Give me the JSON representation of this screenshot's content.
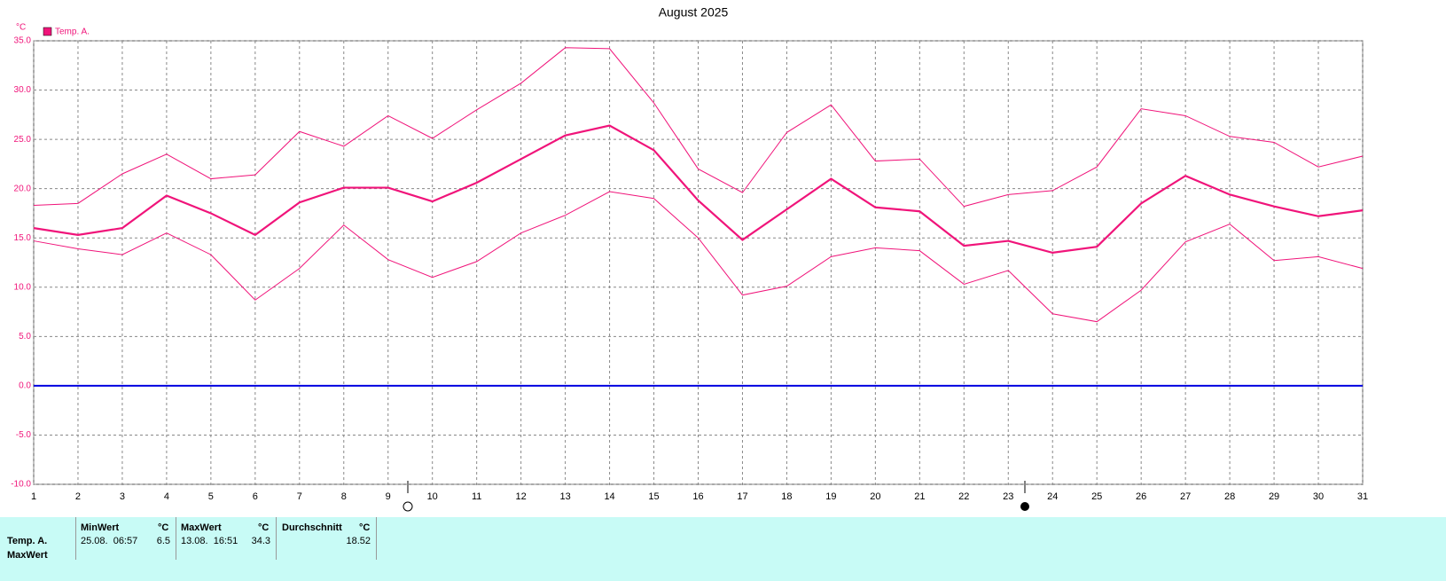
{
  "chart_data": {
    "type": "line",
    "title": "August 2025",
    "y_label": "°C",
    "x": [
      1,
      2,
      3,
      4,
      5,
      6,
      7,
      8,
      9,
      10,
      11,
      12,
      13,
      14,
      15,
      16,
      17,
      18,
      19,
      20,
      21,
      22,
      23,
      24,
      25,
      26,
      27,
      28,
      29,
      30,
      31
    ],
    "xlim": [
      1,
      31
    ],
    "xticks": [
      1,
      2,
      3,
      4,
      5,
      6,
      7,
      8,
      9,
      10,
      11,
      12,
      13,
      14,
      15,
      16,
      17,
      18,
      19,
      20,
      21,
      22,
      23,
      24,
      25,
      26,
      27,
      28,
      29,
      30,
      31
    ],
    "ylim": [
      -10,
      35
    ],
    "yticks": [
      {
        "value": -10,
        "label": "-10.0"
      },
      {
        "value": -5,
        "label": "-5.0"
      },
      {
        "value": 0,
        "label": "0.0"
      },
      {
        "value": 5,
        "label": "5.0"
      },
      {
        "value": 10,
        "label": "10.0"
      },
      {
        "value": 15,
        "label": "15.0"
      },
      {
        "value": 20,
        "label": "20.0"
      },
      {
        "value": 25,
        "label": "25.0"
      },
      {
        "value": 30,
        "label": "30.0"
      },
      {
        "value": 35,
        "label": "35.0"
      }
    ],
    "grid": true,
    "legend": "top-left",
    "zero_line_color": "#0000e0",
    "series": [
      {
        "name": "Temp. A.",
        "color": "#f0147a",
        "width": 2.2,
        "values": [
          16.0,
          15.3,
          16.0,
          19.3,
          17.5,
          15.3,
          18.6,
          20.1,
          20.1,
          18.7,
          20.6,
          23.0,
          25.4,
          26.4,
          23.9,
          18.8,
          14.8,
          17.9,
          21.0,
          18.1,
          17.7,
          14.2,
          14.7,
          13.5,
          14.1,
          18.5,
          21.3,
          19.4,
          18.2,
          17.2,
          17.8
        ]
      },
      {
        "color": "#f0147a",
        "width": 1,
        "values": [
          18.3,
          18.5,
          21.5,
          23.5,
          21.0,
          21.4,
          25.8,
          24.3,
          27.4,
          25.1,
          28.0,
          30.7,
          34.3,
          34.2,
          28.7,
          22.0,
          19.6,
          25.7,
          28.5,
          22.8,
          23.0,
          18.2,
          19.4,
          19.8,
          22.2,
          28.1,
          27.4,
          25.3,
          24.7,
          22.2,
          23.3
        ]
      },
      {
        "color": "#f0147a",
        "width": 1,
        "values": [
          14.7,
          13.9,
          13.3,
          15.5,
          13.3,
          8.7,
          11.9,
          16.3,
          12.8,
          11.0,
          12.6,
          15.5,
          17.3,
          19.7,
          19.0,
          15.0,
          9.2,
          10.1,
          13.1,
          14.0,
          13.7,
          10.3,
          11.7,
          7.3,
          6.5,
          9.7,
          14.6,
          16.4,
          12.7,
          13.1,
          11.9
        ]
      }
    ]
  },
  "stats": {
    "min_header": "MinWert",
    "max_header": "MaxWert",
    "avg_header": "Durchschnitt",
    "unit": "°C",
    "row": {
      "label": "Temp. A.",
      "min_time": "25.08.  06:57",
      "min": 6.5,
      "max_time": "13.08.  16:51",
      "max": 34.3,
      "avg": 18.52
    },
    "next_row_label": "MaxWert"
  }
}
